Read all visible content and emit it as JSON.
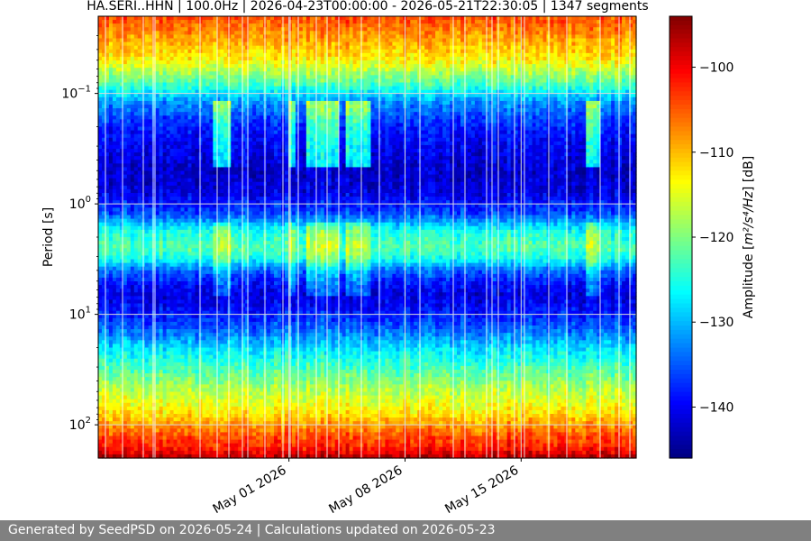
{
  "footer": {
    "text": "Generated by SeedPSD on 2026-05-24 | Calculations updated on 2026-05-23"
  },
  "chart_data": {
    "type": "heatmap",
    "title": "HA.SERI..HHN | 100.0Hz | 2026-04-23T00:00:00 - 2026-05-21T22:30:05 | 1347 segments",
    "ylabel": "Period [s]",
    "xlabel": "",
    "y_scale": "log",
    "y_inverted": true,
    "ylim": [
      0.02,
      200
    ],
    "y_ticks": [
      {
        "value": 0.1,
        "base": "10",
        "exp": "−1"
      },
      {
        "value": 1,
        "base": "10",
        "exp": "0"
      },
      {
        "value": 10,
        "base": "10",
        "exp": "1"
      },
      {
        "value": 100,
        "base": "10",
        "exp": "2"
      }
    ],
    "xlim": [
      "2026-04-19T12:00:00",
      "2026-05-21T22:30:05"
    ],
    "x_ticks": [
      {
        "date": "2026-05-01",
        "label": "May 01 2026"
      },
      {
        "date": "2026-05-08",
        "label": "May 08 2026"
      },
      {
        "date": "2026-05-15",
        "label": "May 15 2026"
      }
    ],
    "grid": true,
    "colormap": "jet",
    "colorbar": {
      "label_prefix": "Amplitude [",
      "label_math": "m²/s⁴/Hz",
      "label_suffix": "] [dB]",
      "range": [
        -146,
        -94
      ],
      "ticks": [
        -100,
        -110,
        -120,
        -130,
        -140
      ],
      "tick_labels": [
        "−100",
        "−110",
        "−120",
        "−130",
        "−140"
      ]
    },
    "periods": [
      0.02,
      0.03,
      0.05,
      0.08,
      0.12,
      0.2,
      0.3,
      0.5,
      0.8,
      1.2,
      1.8,
      2.5,
      3.2,
      4,
      5,
      6.5,
      8,
      11,
      15,
      20,
      30,
      45,
      60,
      80,
      100,
      130,
      160,
      200
    ],
    "mean_profile_db": [
      -104,
      -108,
      -113,
      -122,
      -132,
      -138,
      -140,
      -142,
      -141,
      -136,
      -125,
      -122,
      -126,
      -134,
      -138,
      -141,
      -140,
      -137,
      -133,
      -128,
      -123,
      -118,
      -115,
      -112,
      -108,
      -104,
      -102,
      -96
    ],
    "events": [
      {
        "start": "2026-04-26T12:00:00",
        "end": "2026-04-27T12:00:00",
        "label": ""
      },
      {
        "start": "2026-05-01T00:00:00",
        "end": "2026-05-01T12:00:00",
        "label": ""
      },
      {
        "start": "2026-05-02T00:00:00",
        "end": "2026-05-04T00:00:00",
        "label": ""
      },
      {
        "start": "2026-05-04T12:00:00",
        "end": "2026-05-06T00:00:00",
        "label": ""
      },
      {
        "start": "2026-05-19T00:00:00",
        "end": "2026-05-19T18:00:00",
        "label": ""
      }
    ]
  }
}
